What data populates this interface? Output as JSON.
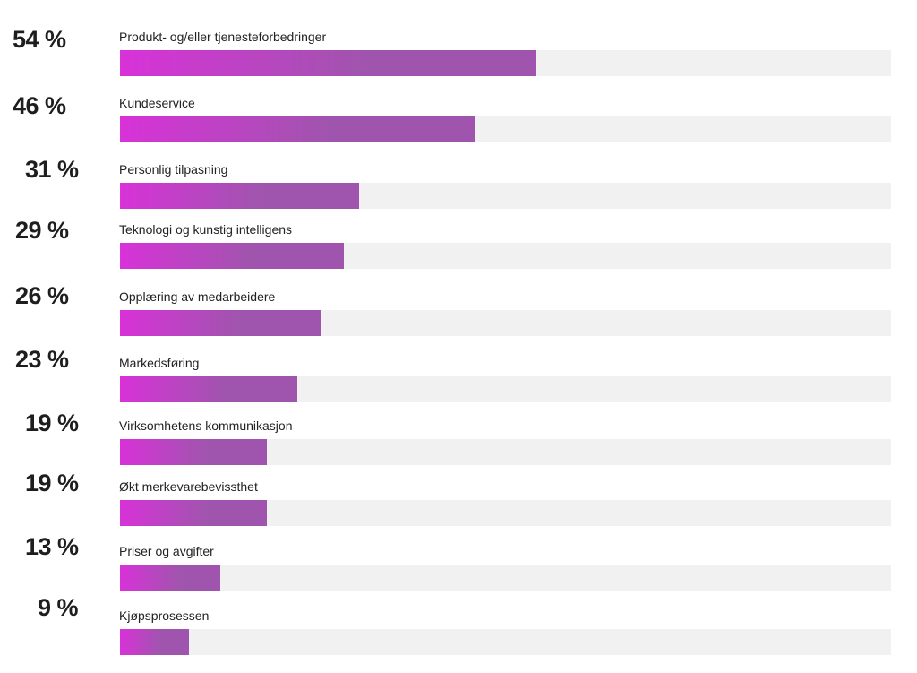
{
  "chart_data": {
    "type": "bar",
    "orientation": "horizontal",
    "categories": [
      "Produkt- og/eller tjenesteforbedringer",
      "Kundeservice",
      "Personlig tilpasning",
      "Teknologi og kunstig intelligens",
      "Opplæring av medarbeidere",
      "Markedsføring",
      "Virksomhetens kommunikasjon",
      "Økt merkevarebevissthet",
      "Priser og avgifter",
      "Kjøpsprosessen"
    ],
    "values": [
      54,
      46,
      31,
      29,
      26,
      23,
      19,
      19,
      13,
      9
    ],
    "value_labels": [
      "54 %",
      "46 %",
      "31 %",
      "29 %",
      "26 %",
      "23 %",
      "19 %",
      "19 %",
      "13 %",
      "9 %"
    ],
    "xlim": [
      0,
      100
    ],
    "grid": false,
    "colors": {
      "gradient_start": "#d832d8",
      "gradient_end": "#9f55ad",
      "track": "#f1f1f1"
    }
  }
}
